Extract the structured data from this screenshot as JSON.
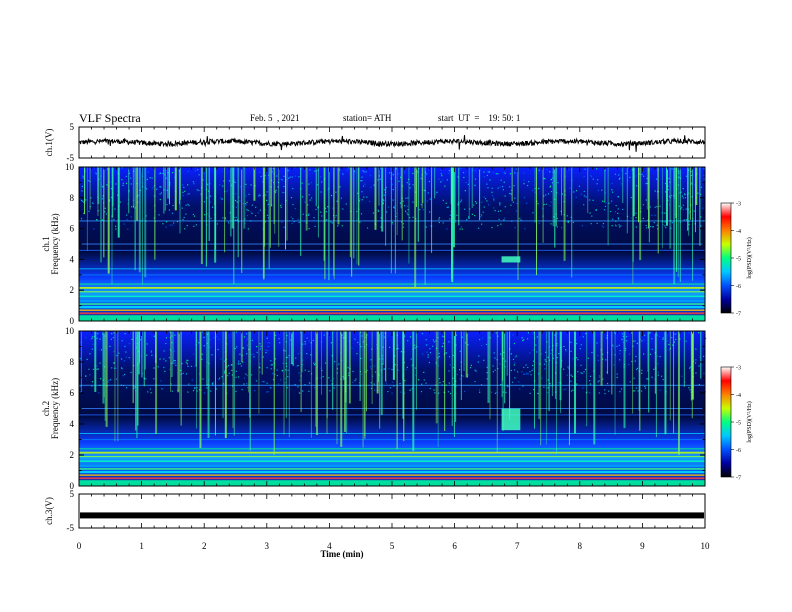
{
  "header": {
    "title": "VLF Spectra",
    "date": "Feb. 5  , 2021",
    "station": "station= ATH",
    "start": "start  UT  =    19: 50: 1"
  },
  "chart_data": [
    {
      "type": "line",
      "panel": "ch.1 waveform",
      "ylabel": "ch.1(V)",
      "ylim": [
        -5,
        5
      ],
      "yticks": [
        "5",
        "-5"
      ],
      "xlim": [
        0,
        10
      ],
      "baseline": 0,
      "color": "#000000"
    },
    {
      "type": "heatmap",
      "panel": "ch.1 spectrogram",
      "ylabel": "ch.1  Frequency  (kHz)",
      "ylim": [
        0,
        10
      ],
      "yticks": [
        "0",
        "2",
        "4",
        "6",
        "8",
        "10"
      ],
      "xlim": [
        0,
        10
      ],
      "colorbar": {
        "label": "log(PSD)(V²/Hz)",
        "range": [
          -7,
          -3
        ],
        "ticks": [
          "-3",
          "-4",
          "-5",
          "-6",
          "-7"
        ],
        "colors": [
          "#000000",
          "#0000a0",
          "#0050ff",
          "#00c8ff",
          "#00ff80",
          "#c8ff00",
          "#ff8000",
          "#ff0000",
          "#ffffff"
        ]
      },
      "features": [
        {
          "name": "emission burst",
          "x": [
            6.75,
            7.05
          ],
          "y": [
            3.8,
            4.2
          ]
        }
      ]
    },
    {
      "type": "heatmap",
      "panel": "ch.2 spectrogram",
      "ylabel": "ch.2  Frequency  (kHz)",
      "ylim": [
        0,
        10
      ],
      "yticks": [
        "0",
        "2",
        "4",
        "6",
        "8",
        "10"
      ],
      "xlim": [
        0,
        10
      ],
      "colorbar": {
        "label": "log(PSD)(V²/Hz)",
        "range": [
          -7,
          -3
        ],
        "ticks": [
          "-3",
          "-4",
          "-5",
          "-6",
          "-7"
        ],
        "colors": [
          "#000000",
          "#0000a0",
          "#0050ff",
          "#00c8ff",
          "#00ff80",
          "#c8ff00",
          "#ff8000",
          "#ff0000",
          "#ffffff"
        ]
      },
      "features": [
        {
          "name": "emission burst",
          "x": [
            6.75,
            7.05
          ],
          "y": [
            3.6,
            5.0
          ]
        }
      ]
    },
    {
      "type": "line",
      "panel": "ch.3 waveform",
      "ylabel": "ch.3(V)",
      "ylim": [
        -5,
        5
      ],
      "yticks": [
        "5",
        "-5"
      ],
      "xlim": [
        0,
        10
      ],
      "baseline": -1.3,
      "color": "#000000"
    }
  ],
  "xaxis": {
    "label": "Time  (min)",
    "ticks": [
      "0",
      "1",
      "2",
      "3",
      "4",
      "5",
      "6",
      "7",
      "8",
      "9",
      "10"
    ]
  }
}
